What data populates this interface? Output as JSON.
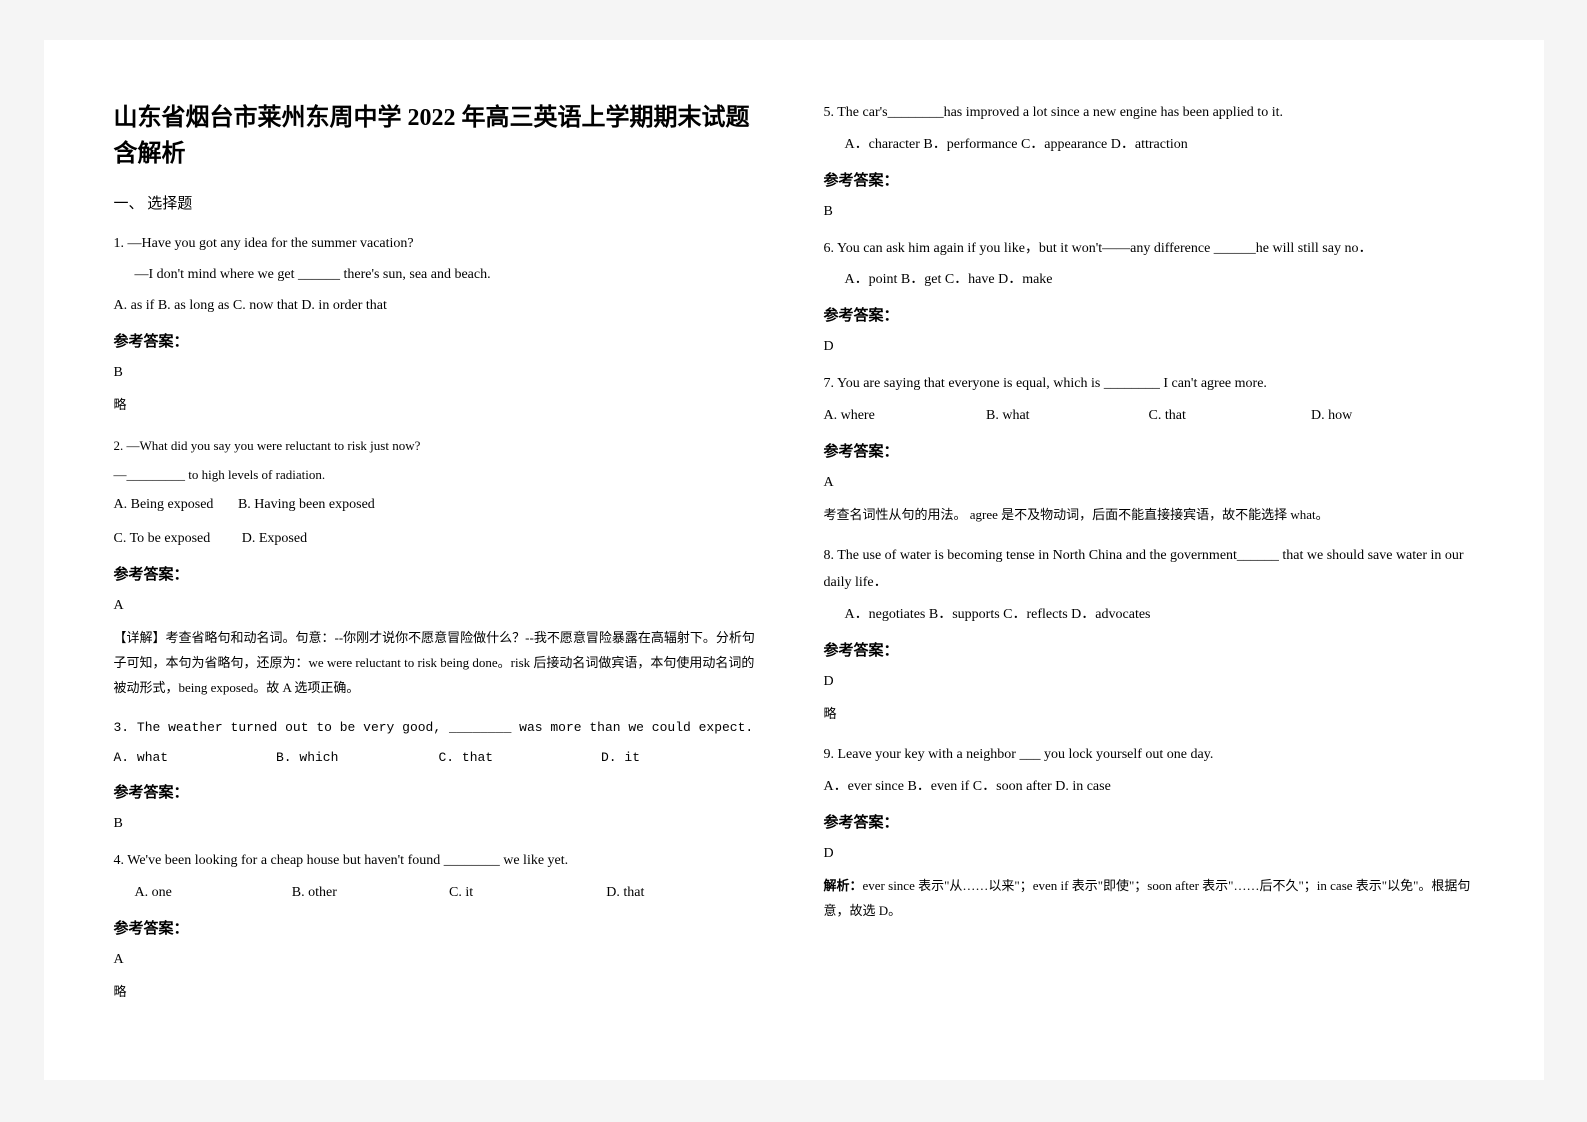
{
  "title": "山东省烟台市莱州东周中学 2022 年高三英语上学期期末试题含解析",
  "section1": "一、 选择题",
  "q1": {
    "line1": "1. —Have you got any idea for the summer vacation?",
    "line2": "—I don't mind where we get ______ there's sun, sea and beach.",
    "opts": "A. as if      B. as long as     C. now that     D. in order that",
    "ansLabel": "参考答案：",
    "ans": "B",
    "note": "略"
  },
  "q2": {
    "line1": "2. —What did you say you were reluctant to risk just now?",
    "line2": "—_________ to high levels of radiation.",
    "optA": "A. Being exposed",
    "optB": "B. Having been exposed",
    "optC": "C. To be exposed",
    "optD": "D. Exposed",
    "ansLabel": "参考答案：",
    "ans": "A",
    "explain": "【详解】考查省略句和动名词。句意：--你刚才说你不愿意冒险做什么？--我不愿意冒险暴露在高辐射下。分析句子可知，本句为省略句，还原为：we were reluctant to risk being done。risk 后接动名词做宾语，本句使用动名词的被动形式，being exposed。故 A 选项正确。"
  },
  "q3": {
    "line1": "3. The weather turned out to be very good, ________ was more than we could expect.",
    "A": "A. what",
    "B": "B. which",
    "C": "C. that",
    "D": "D. it",
    "ansLabel": "参考答案：",
    "ans": "B"
  },
  "q4": {
    "line1": "4. We've been looking for a cheap house but haven't found ________ we like yet.",
    "A": "A. one",
    "B": "B. other",
    "C": "C. it",
    "D": "D. that",
    "ansLabel": "参考答案：",
    "ans": "A",
    "note": "略"
  },
  "q5": {
    "line1": "5. The car's________has improved a lot since a new engine has been applied to it.",
    "opts": "A．character        B．performance    C．appearance    D．attraction",
    "ansLabel": "参考答案：",
    "ans": "B"
  },
  "q6": {
    "line1": "6. You can ask him again if you like，but it won't——any difference ______he will still say no．",
    "opts": "A．point   B．get   C．have   D．make",
    "ansLabel": "参考答案：",
    "ans": "D"
  },
  "q7": {
    "line1": "7. You are saying that everyone is equal, which is ________ I can't agree more.",
    "A": "A. where",
    "B": "B. what",
    "C": "C. that",
    "D": "D. how",
    "ansLabel": "参考答案：",
    "ans": "A",
    "explain": "考查名词性从句的用法。 agree 是不及物动词，后面不能直接接宾语，故不能选择 what。"
  },
  "q8": {
    "line1": "8. The use of water is becoming tense in North China and the government______ that we should save water in our daily life．",
    "opts": "A．negotiates  B．supports     C．reflects      D．advocates",
    "ansLabel": "参考答案：",
    "ans": "D",
    "note": "略"
  },
  "q9": {
    "line1": "9. Leave your key with a neighbor ___ you lock yourself out one day.",
    "opts": "A．ever since  B．even if   C．soon after    D. in case",
    "ansLabel": "参考答案：",
    "ans": "D",
    "explain": "解析：ever since 表示\"从……以来\"；even if 表示\"即使\"；soon after 表示\"……后不久\"；in case 表示\"以免\"。根据句意，故选 D。"
  }
}
